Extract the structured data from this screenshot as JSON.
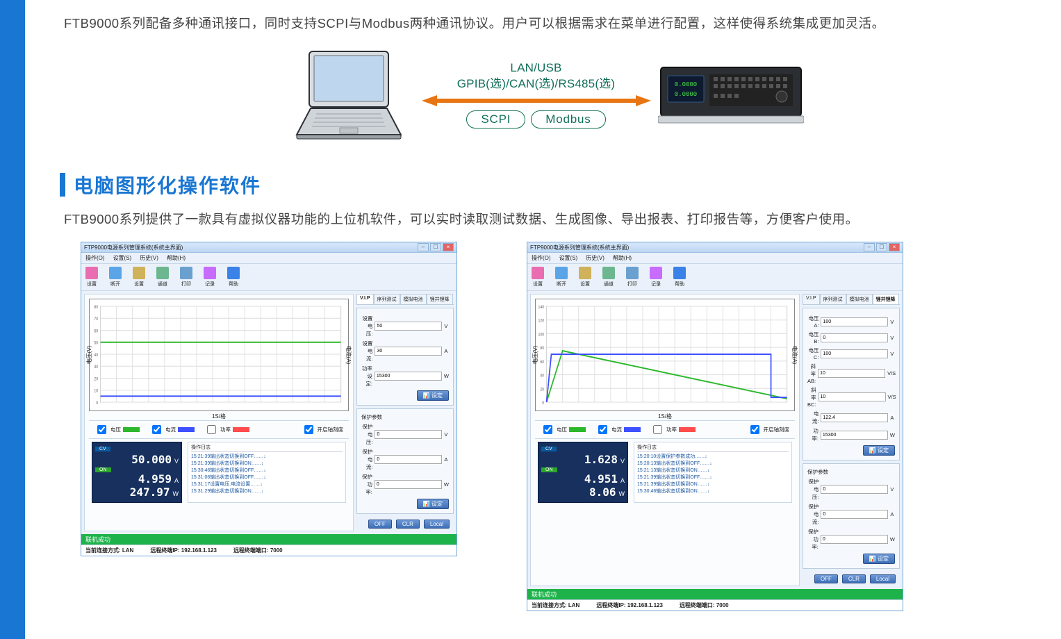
{
  "intro_text": "FTB9000系列配备多种通讯接口，同时支持SCPI与Modbus两种通讯协议。用户可以根据需求在菜单进行配置，这样使得系统集成更加灵活。",
  "comm": {
    "line1": "LAN/USB",
    "line2": "GPIB(选)/CAN(选)/RS485(选)",
    "proto1": "SCPI",
    "proto2": "Modbus",
    "arrow_color": "#e87412"
  },
  "section": {
    "title": "电脑图形化操作软件"
  },
  "desc_text": "FTB9000系列提供了一款具有虚拟仪器功能的上位机软件，可以实时读取测试数据、生成图像、导出报表、打印报告等，方便客户使用。",
  "colors": {
    "brand": "#1976d2",
    "teal": "#0f6e57",
    "volt": "#2cb82c",
    "curr": "#3c50ff",
    "pow": "#ff4c4c"
  },
  "win_common": {
    "title": "FTP9000电源系列管理系统(系统主界面)",
    "menus": [
      "操作(O)",
      "设置(S)",
      "历史(V)",
      "帮助(H)"
    ],
    "toolbar": [
      {
        "label": "设置",
        "color": "#e96db0"
      },
      {
        "label": "断开",
        "color": "#5aa5e8"
      },
      {
        "label": "设置",
        "color": "#d0b25a"
      },
      {
        "label": "通道",
        "color": "#6cb690"
      },
      {
        "label": "打印",
        "color": "#6aa0d0"
      },
      {
        "label": "记录",
        "color": "#c76cff"
      },
      {
        "label": "帮助",
        "color": "#3b82e8"
      }
    ],
    "tabs": [
      "V.I.P",
      "序列测试",
      "模拟电池",
      "锂并锂降"
    ],
    "legend": {
      "volt": "电压",
      "curr": "电流",
      "pow": "功率",
      "auto": "开启轴刻度"
    },
    "xlabel": "1S/格",
    "y_left": "电压(V)",
    "y_right": "电流(A)",
    "status_ok": "联机成功",
    "status_conn": "当前连接方式: LAN",
    "status_ip": "远程终端IP: 192.168.1.123",
    "status_port": "远程终端端口: 7000",
    "log_head": "操作日志",
    "btn_off": "OFF",
    "btn_clr": "CLR",
    "btn_local": "Local",
    "btn_set": "设定"
  },
  "win1": {
    "active_tab": 0,
    "chart": {
      "type": "line",
      "y_ticks": [
        0,
        10,
        20,
        30,
        40,
        50,
        60,
        70,
        80
      ],
      "x_ticks": 15,
      "ylim": [
        0,
        80
      ],
      "volt_series_y": 50,
      "curr_series_y": 5,
      "volt_color": "#2cb82c",
      "curr_color": "#3c50ff",
      "grid_color": "#dddddd"
    },
    "settings": [
      {
        "label": "设置电压:",
        "value": "50",
        "unit": "V"
      },
      {
        "label": "设置电流:",
        "value": "30",
        "unit": "A"
      },
      {
        "label": "功率设定:",
        "value": "15300",
        "unit": "W"
      }
    ],
    "protect_head": "保护参数",
    "protect": [
      {
        "label": "保护电压:",
        "value": "0",
        "unit": "V"
      },
      {
        "label": "保护电流:",
        "value": "0",
        "unit": "A"
      },
      {
        "label": "保护功率:",
        "value": "0",
        "unit": "W"
      }
    ],
    "readout": {
      "cv": "CV",
      "on": "ON",
      "volt": "50.000",
      "volt_u": "V",
      "curr": "4.959",
      "curr_u": "A",
      "pow": "247.97",
      "pow_u": "W"
    },
    "log": [
      "15:21:39输出状态切换到OFF……↓",
      "15:21:39输出状态切换到ON……↓",
      "15:30:46输出状态切换到OFF……↓",
      "15:31:06输出状态切换到OFF……↓",
      "15:31:17设置电压.电流设置……↓",
      "15:31:29输出状态切换到ON……↓"
    ]
  },
  "win2": {
    "active_tab": 3,
    "chart": {
      "type": "line",
      "y_ticks": [
        0,
        20,
        40,
        60,
        80,
        100,
        120,
        140
      ],
      "x_ticks": 15,
      "ylim": [
        0,
        140
      ],
      "volt_poly": [
        [
          0,
          0
        ],
        [
          1,
          75
        ],
        [
          15,
          5
        ]
      ],
      "curr_poly": [
        [
          0,
          0
        ],
        [
          0.3,
          5
        ],
        [
          14,
          5
        ],
        [
          14,
          0.5
        ],
        [
          15,
          0.5
        ]
      ],
      "volt_color": "#2cb82c",
      "curr_color": "#3c50ff",
      "grid_color": "#dddddd"
    },
    "settings": [
      {
        "label": "电压A:",
        "value": "100",
        "unit": "V"
      },
      {
        "label": "电压B:",
        "value": "0",
        "unit": "V"
      },
      {
        "label": "电压C:",
        "value": "100",
        "unit": "V"
      },
      {
        "label": "斜率AB:",
        "value": "10",
        "unit": "V/S"
      },
      {
        "label": "斜率BC:",
        "value": "10",
        "unit": "V/S"
      },
      {
        "label": "电流:",
        "value": "122.4",
        "unit": "A"
      },
      {
        "label": "功率:",
        "value": "15300",
        "unit": "W"
      }
    ],
    "protect_head": "保护参数",
    "protect": [
      {
        "label": "保护电压:",
        "value": "0",
        "unit": "V"
      },
      {
        "label": "保护电流:",
        "value": "0",
        "unit": "A"
      },
      {
        "label": "保护功率:",
        "value": "0",
        "unit": "W"
      }
    ],
    "readout": {
      "cv": "CV",
      "on": "ON",
      "volt": "1.628",
      "volt_u": "V",
      "curr": "4.951",
      "curr_u": "A",
      "pow": "8.06",
      "pow_u": "W"
    },
    "log": [
      "15:20:10设置保护参数成功……↓",
      "15:20:13输出状态切换到OFF……↓",
      "15:21:13输出状态切换到ON……↓",
      "15:21:39输出状态切换到OFF……↓",
      "15:21:39输出状态切换到ON……↓",
      "15:30:46输出状态切换到ON……↓"
    ]
  }
}
